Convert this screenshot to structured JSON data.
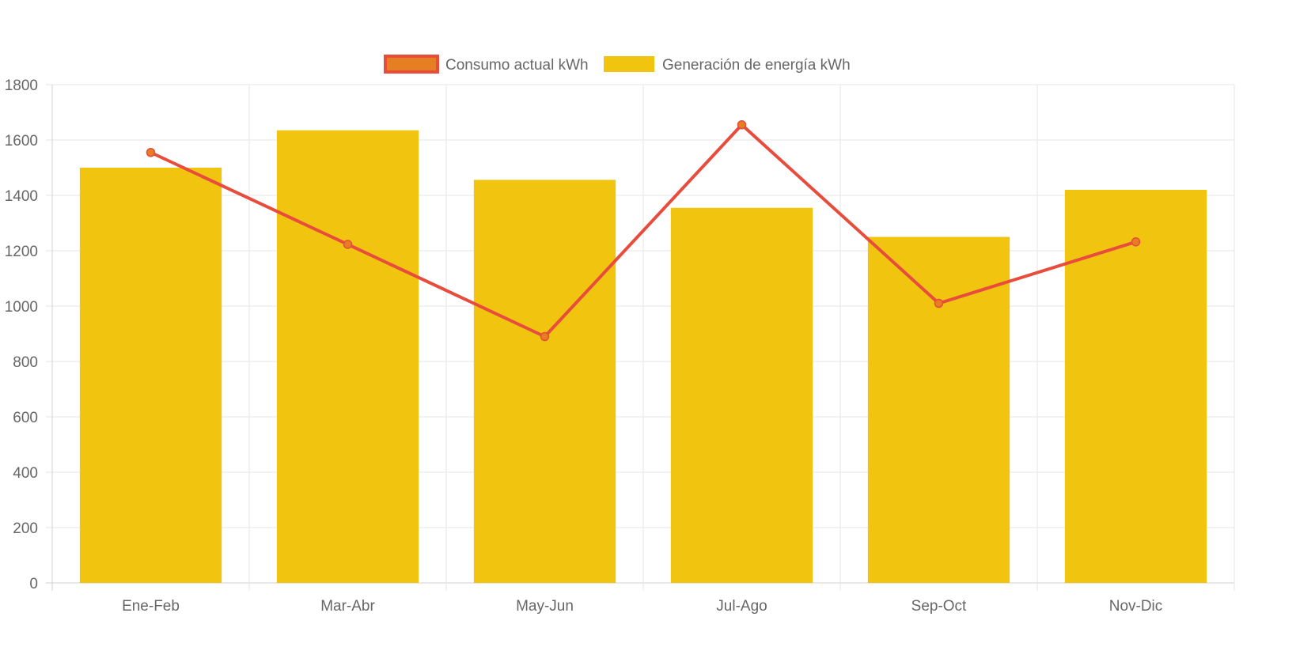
{
  "chart_data": {
    "type": "bar",
    "categories": [
      "Ene-Feb",
      "Mar-Abr",
      "May-Jun",
      "Jul-Ago",
      "Sep-Oct",
      "Nov-Dic"
    ],
    "series": [
      {
        "name": "Consumo actual kWh",
        "type": "line",
        "values": [
          1555,
          1223,
          890,
          1655,
          1010,
          1232
        ],
        "color": "#e74c3c",
        "point_color": "#e67e22"
      },
      {
        "name": "Generación de energía kWh",
        "type": "bar",
        "values": [
          1500,
          1635,
          1456,
          1355,
          1250,
          1420
        ],
        "color": "#f1c40f"
      }
    ],
    "ylim": [
      0,
      1800
    ],
    "yticks": [
      0,
      200,
      400,
      600,
      800,
      1000,
      1200,
      1400,
      1600,
      1800
    ],
    "grid": true,
    "legend_position": "top-center",
    "xlabel": "",
    "ylabel": ""
  }
}
